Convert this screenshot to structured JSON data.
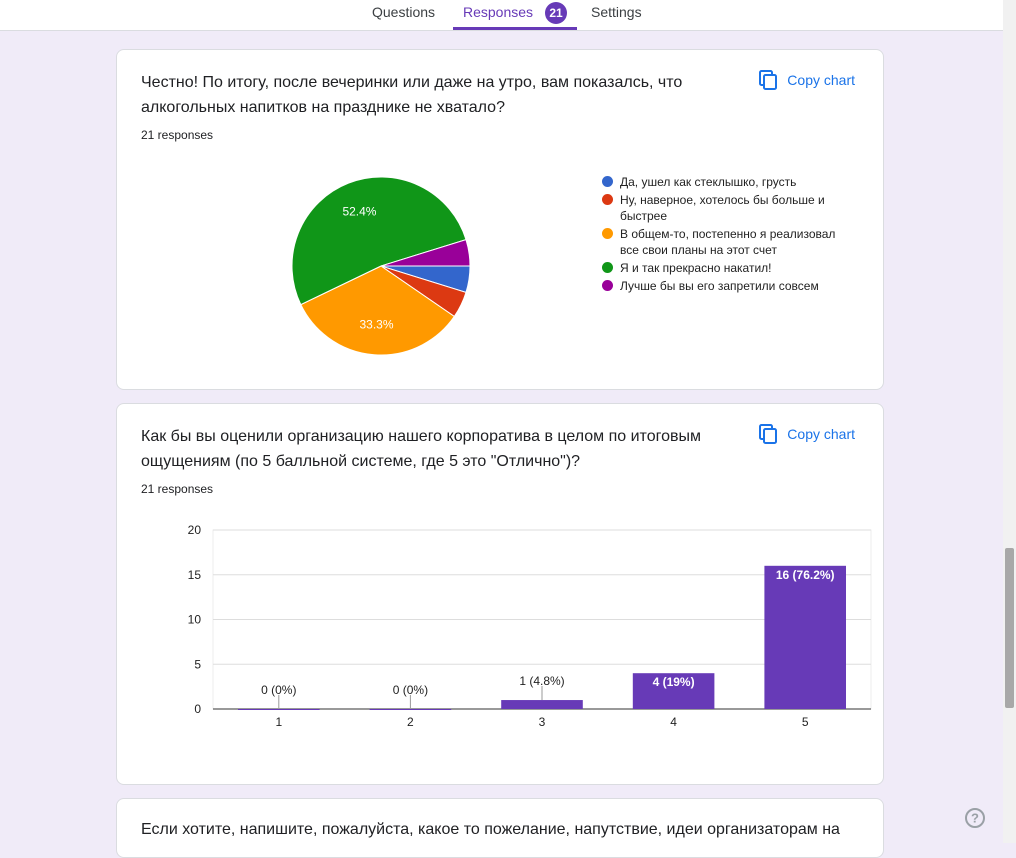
{
  "tabs": {
    "questions": "Questions",
    "responses": "Responses",
    "count": "21",
    "settings": "Settings"
  },
  "copy_chart": [
    "Copy chart",
    "Copy chart"
  ],
  "next_question": "Если хотите, напишите, пожалуйста, какое то пожелание, напутствие, идеи организаторам на",
  "chart_data": [
    {
      "type": "pie",
      "title": "Честно! По итогу, после вечеринки или даже на утро, вам показалсь, что алкогольных напитков на празднике не хватало?",
      "subtitle": "21 responses",
      "categories": [
        "Да, ушел как стеклышко, грусть",
        "Ну, наверное, хотелось бы больше и быстрее",
        "В общем-то, постепенно я реализовал все свои планы на этот счет",
        "Я и так прекрасно накатил!",
        "Лучше бы вы его запретили совсем"
      ],
      "values": [
        4.8,
        4.8,
        33.3,
        52.4,
        4.8
      ],
      "value_labels": [
        null,
        null,
        "33.3%",
        "52.4%",
        null
      ],
      "colors": [
        "#3366cc",
        "#dc3912",
        "#ff9900",
        "#109618",
        "#990099"
      ]
    },
    {
      "type": "bar",
      "title": "Как бы вы оценили организацию нашего корпоратива в целом по итоговым ощущениям (по 5 балльной системе, где 5 это \"Отлично\")?",
      "subtitle": "21 responses",
      "categories": [
        "1",
        "2",
        "3",
        "4",
        "5"
      ],
      "values": [
        0,
        0,
        1,
        4,
        16
      ],
      "value_labels": [
        "0 (0%)",
        "0 (0%)",
        "1 (4.8%)",
        "4 (19%)",
        "16 (76.2%)"
      ],
      "color": "#673ab7",
      "ylim": [
        0,
        20
      ],
      "yticks": [
        0,
        5,
        10,
        15,
        20
      ],
      "grid": true
    }
  ]
}
